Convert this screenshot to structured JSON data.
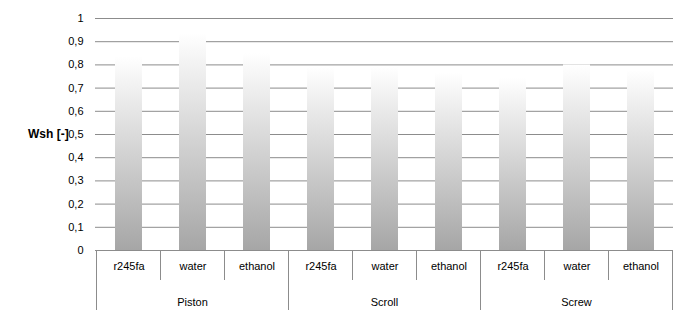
{
  "chart_data": {
    "type": "bar",
    "y_label": "Wsh [-]",
    "groups": [
      "Piston",
      "Scroll",
      "Screw"
    ],
    "categories": [
      "r245fa",
      "water",
      "ethanol"
    ],
    "values": [
      [
        0.835,
        0.935,
        0.85
      ],
      [
        0.79,
        0.79,
        0.765
      ],
      [
        0.745,
        0.8,
        0.775
      ]
    ],
    "color": "#a6a6a6",
    "ylim": [
      0,
      1
    ],
    "yticks": [
      0,
      {
        "value": 0.1,
        "label": "0,1"
      },
      {
        "value": 0.2,
        "label": "0,2"
      },
      {
        "value": 0.3,
        "label": "0,3"
      },
      {
        "value": 0.4,
        "label": "0,4"
      },
      {
        "value": 0.5,
        "label": "0,5"
      },
      {
        "value": 0.6,
        "label": "0,6"
      },
      {
        "value": 0.7,
        "label": "0,7"
      },
      {
        "value": 0.8,
        "label": "0,8"
      },
      {
        "value": 0.9,
        "label": "0,9"
      },
      1
    ],
    "grid": true
  }
}
